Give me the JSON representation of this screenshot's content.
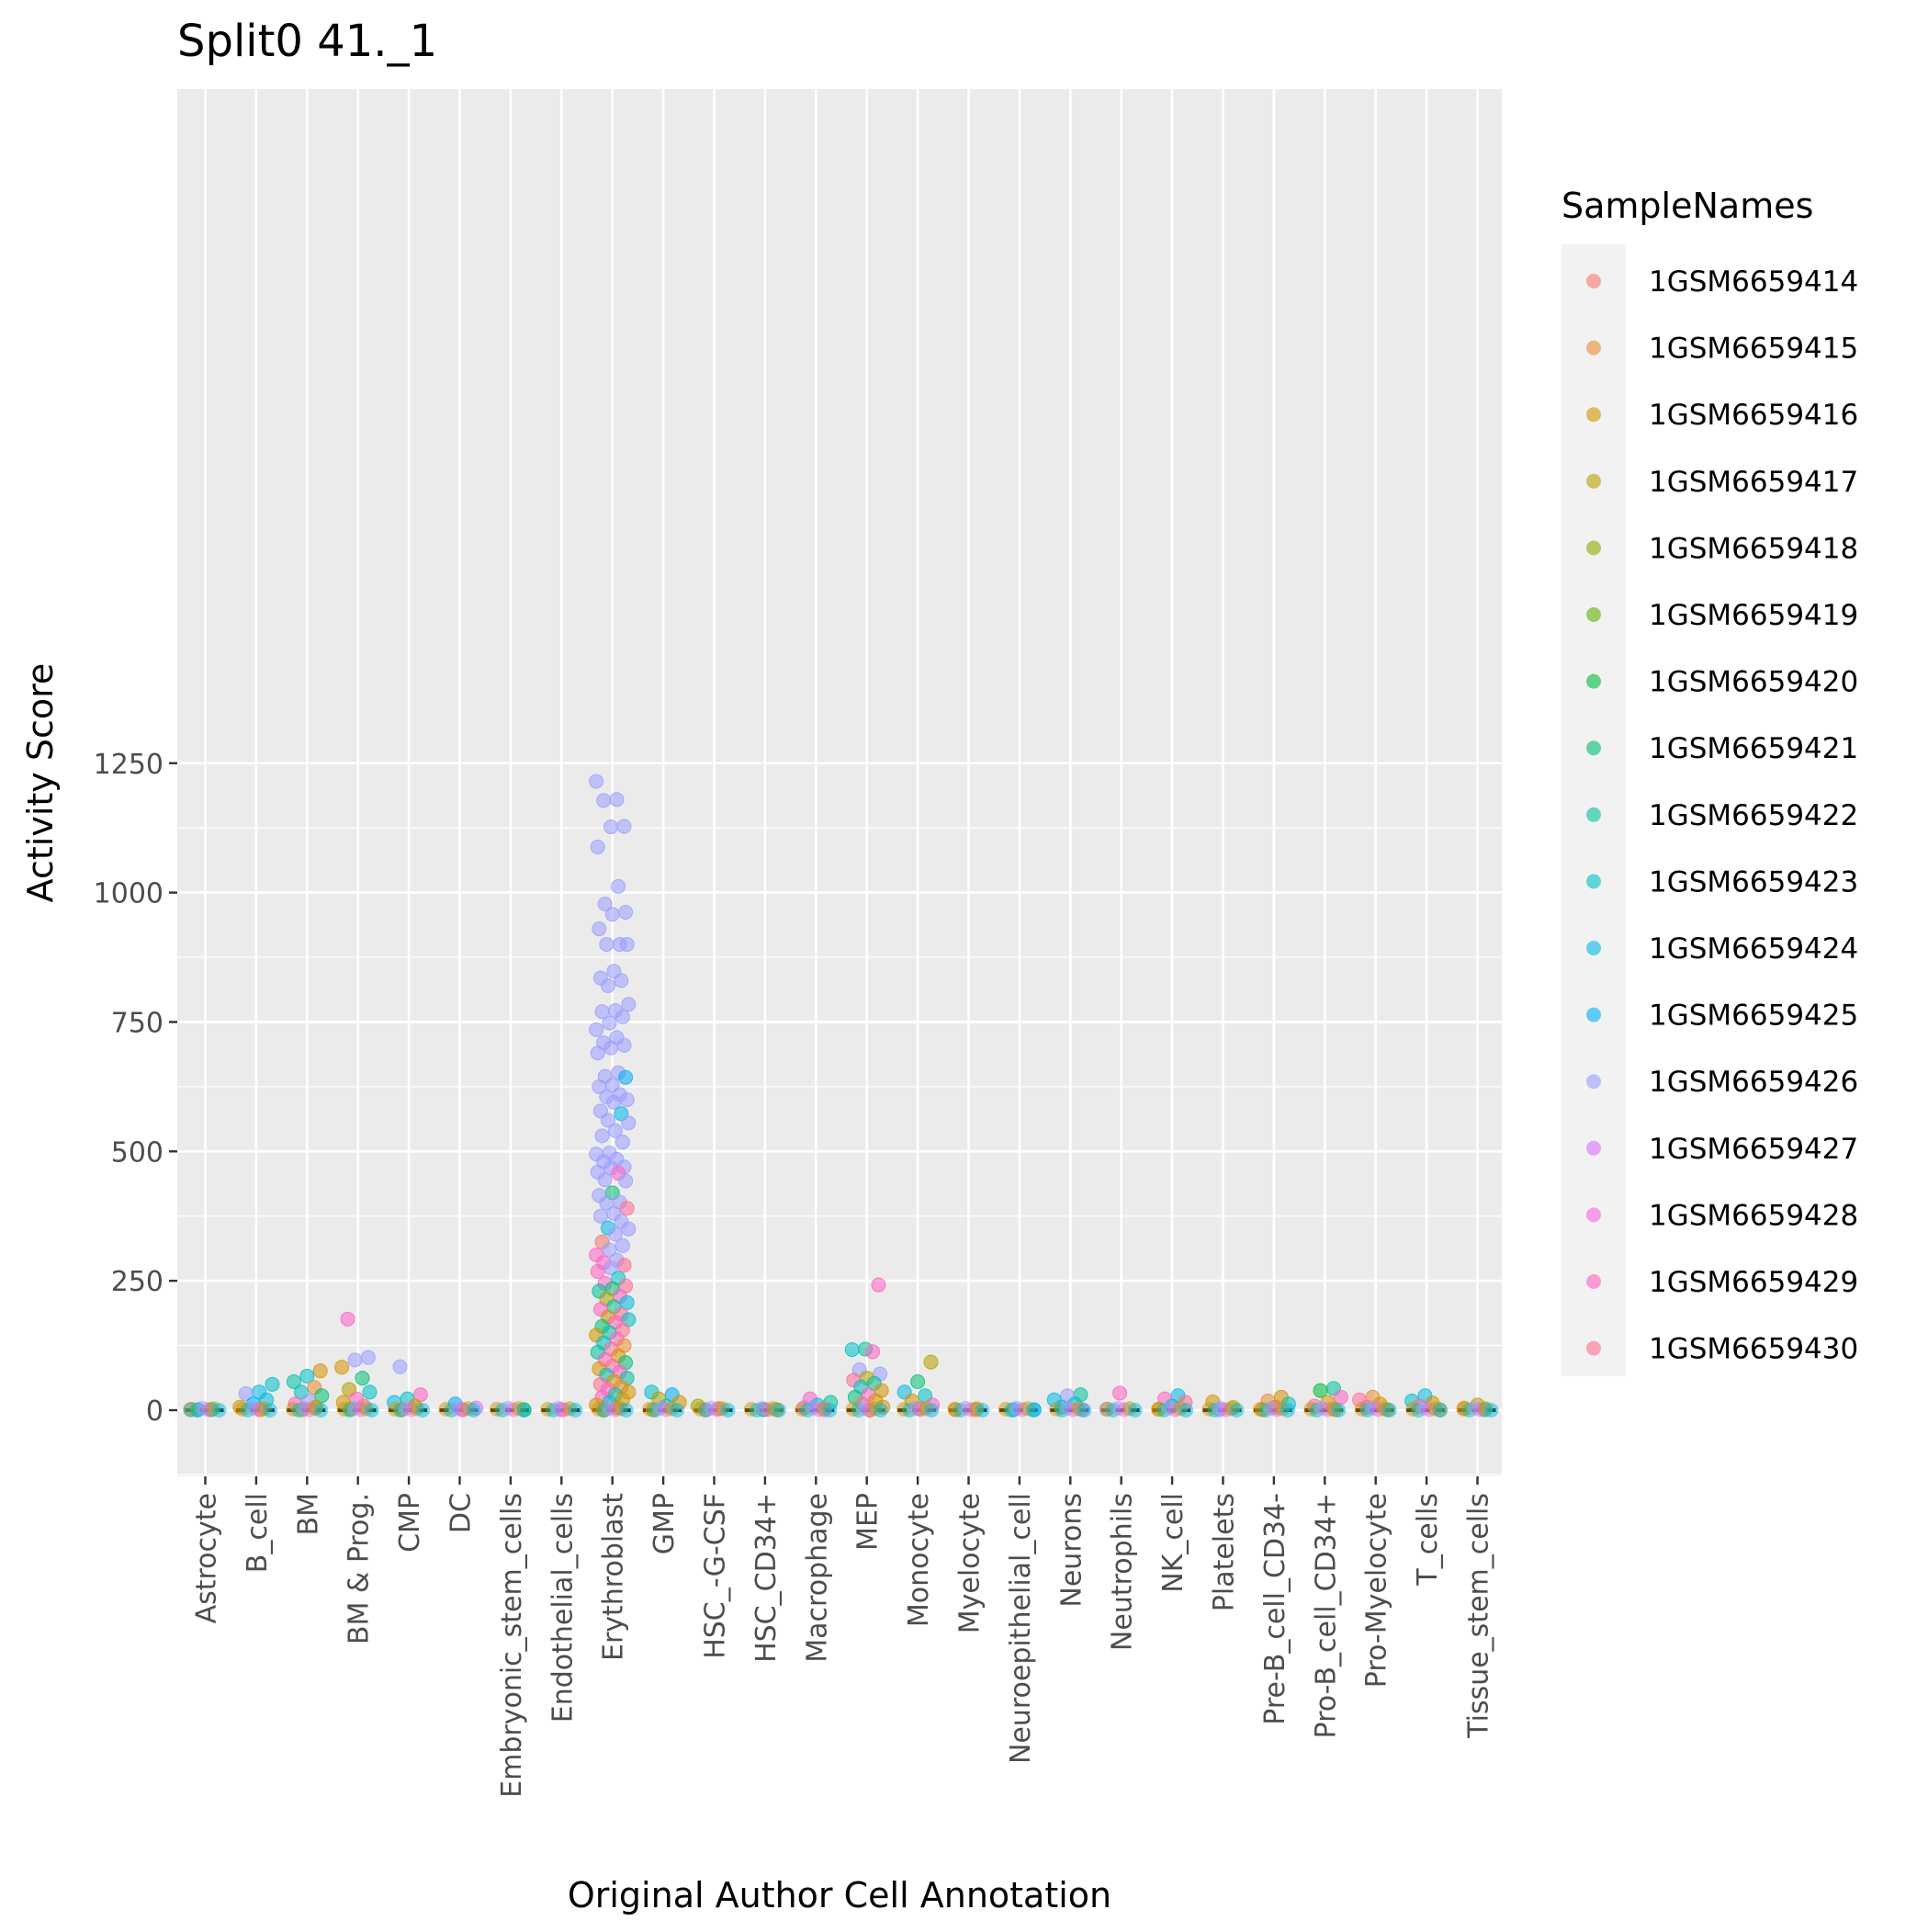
{
  "chart_data": {
    "type": "scatter",
    "title": "Split0 41._1",
    "xlabel": "Original Author Cell Annotation",
    "ylabel": "Activity Score",
    "ylim": [
      -62,
      1272
    ],
    "yticks": [
      0,
      250,
      500,
      750,
      1000,
      1250
    ],
    "grid": true,
    "legend_position": "right",
    "legend_title": "SampleNames",
    "categories": [
      "Astrocyte",
      "B_cell",
      "BM",
      "BM & Prog.",
      "CMP",
      "DC",
      "Embryonic_stem_cells",
      "Endothelial_cells",
      "Erythroblast",
      "GMP",
      "HSC_-G-CSF",
      "HSC_CD34+",
      "Macrophage",
      "MEP",
      "Monocyte",
      "Myelocyte",
      "Neuroepithelial_cell",
      "Neurons",
      "Neutrophils",
      "NK_cell",
      "Platelets",
      "Pre-B_cell_CD34-",
      "Pro-B_cell_CD34+",
      "Pro-Myelocyte",
      "T_cells",
      "Tissue_stem_cells"
    ],
    "series": [
      {
        "name": "1GSM6659414",
        "color": "#F8766D"
      },
      {
        "name": "1GSM6659415",
        "color": "#E98A33"
      },
      {
        "name": "1GSM6659416",
        "color": "#D39200"
      },
      {
        "name": "1GSM6659417",
        "color": "#B79F00"
      },
      {
        "name": "1GSM6659418",
        "color": "#93AA00"
      },
      {
        "name": "1GSM6659419",
        "color": "#5EB300"
      },
      {
        "name": "1GSM6659420",
        "color": "#00BA38"
      },
      {
        "name": "1GSM6659421",
        "color": "#00BF74"
      },
      {
        "name": "1GSM6659422",
        "color": "#00C19F"
      },
      {
        "name": "1GSM6659423",
        "color": "#00BFC4"
      },
      {
        "name": "1GSM6659424",
        "color": "#00B9E3"
      },
      {
        "name": "1GSM6659425",
        "color": "#00ADFA"
      },
      {
        "name": "1GSM6659426",
        "color": "#9A9CFF"
      },
      {
        "name": "1GSM6659427",
        "color": "#DB72FB"
      },
      {
        "name": "1GSM6659428",
        "color": "#F564E3"
      },
      {
        "name": "1GSM6659429",
        "color": "#FF61C3"
      },
      {
        "name": "1GSM6659430",
        "color": "#FF6C91"
      }
    ],
    "points": [
      [
        "Erythroblast",
        1215,
        12
      ],
      [
        "Erythroblast",
        1180,
        12
      ],
      [
        "Erythroblast",
        1178,
        12
      ],
      [
        "Erythroblast",
        1128,
        12
      ],
      [
        "Erythroblast",
        1127,
        12
      ],
      [
        "Erythroblast",
        1088,
        12
      ],
      [
        "Erythroblast",
        1012,
        12
      ],
      [
        "Erythroblast",
        978,
        12
      ],
      [
        "Erythroblast",
        962,
        12
      ],
      [
        "Erythroblast",
        958,
        12
      ],
      [
        "Erythroblast",
        930,
        12
      ],
      [
        "Erythroblast",
        900,
        12
      ],
      [
        "Erythroblast",
        900,
        12
      ],
      [
        "Erythroblast",
        900,
        12
      ],
      [
        "Erythroblast",
        848,
        12
      ],
      [
        "Erythroblast",
        835,
        12
      ],
      [
        "Erythroblast",
        830,
        12
      ],
      [
        "Erythroblast",
        820,
        12
      ],
      [
        "Erythroblast",
        784,
        12
      ],
      [
        "Erythroblast",
        772,
        12
      ],
      [
        "Erythroblast",
        770,
        12
      ],
      [
        "Erythroblast",
        760,
        12
      ],
      [
        "Erythroblast",
        748,
        12
      ],
      [
        "Erythroblast",
        735,
        12
      ],
      [
        "Erythroblast",
        720,
        12
      ],
      [
        "Erythroblast",
        710,
        12
      ],
      [
        "Erythroblast",
        705,
        12
      ],
      [
        "Erythroblast",
        700,
        12
      ],
      [
        "Erythroblast",
        690,
        12
      ],
      [
        "Erythroblast",
        652,
        12
      ],
      [
        "Erythroblast",
        645,
        12
      ],
      [
        "Erythroblast",
        643,
        11
      ],
      [
        "Erythroblast",
        628,
        12
      ],
      [
        "Erythroblast",
        625,
        12
      ],
      [
        "Erythroblast",
        610,
        12
      ],
      [
        "Erythroblast",
        605,
        12
      ],
      [
        "Erythroblast",
        600,
        12
      ],
      [
        "Erythroblast",
        595,
        12
      ],
      [
        "Erythroblast",
        578,
        12
      ],
      [
        "Erythroblast",
        573,
        10
      ],
      [
        "Erythroblast",
        560,
        12
      ],
      [
        "Erythroblast",
        555,
        12
      ],
      [
        "Erythroblast",
        540,
        12
      ],
      [
        "Erythroblast",
        530,
        12
      ],
      [
        "Erythroblast",
        518,
        12
      ],
      [
        "Erythroblast",
        497,
        12
      ],
      [
        "Erythroblast",
        495,
        12
      ],
      [
        "Erythroblast",
        485,
        12
      ],
      [
        "Erythroblast",
        480,
        12
      ],
      [
        "Erythroblast",
        470,
        12
      ],
      [
        "Erythroblast",
        468,
        12
      ],
      [
        "Erythroblast",
        460,
        12
      ],
      [
        "Erythroblast",
        458,
        15
      ],
      [
        "Erythroblast",
        445,
        12
      ],
      [
        "Erythroblast",
        443,
        12
      ],
      [
        "Erythroblast",
        420,
        7
      ],
      [
        "Erythroblast",
        415,
        12
      ],
      [
        "Erythroblast",
        402,
        12
      ],
      [
        "Erythroblast",
        400,
        12
      ],
      [
        "Erythroblast",
        390,
        16
      ],
      [
        "Erythroblast",
        380,
        12
      ],
      [
        "Erythroblast",
        375,
        12
      ],
      [
        "Erythroblast",
        365,
        12
      ],
      [
        "Erythroblast",
        352,
        10
      ],
      [
        "Erythroblast",
        350,
        12
      ],
      [
        "Erythroblast",
        340,
        12
      ],
      [
        "Erythroblast",
        325,
        0
      ],
      [
        "Erythroblast",
        318,
        12
      ],
      [
        "Erythroblast",
        310,
        12
      ],
      [
        "Erythroblast",
        300,
        15
      ],
      [
        "Erythroblast",
        290,
        12
      ],
      [
        "Erythroblast",
        285,
        15
      ],
      [
        "Erythroblast",
        280,
        16
      ],
      [
        "Erythroblast",
        275,
        12
      ],
      [
        "Erythroblast",
        268,
        15
      ],
      [
        "Erythroblast",
        255,
        9
      ],
      [
        "Erythroblast",
        245,
        15
      ],
      [
        "Erythroblast",
        240,
        16
      ],
      [
        "Erythroblast",
        235,
        7
      ],
      [
        "Erythroblast",
        230,
        8
      ],
      [
        "Erythroblast",
        220,
        15
      ],
      [
        "Erythroblast",
        215,
        3
      ],
      [
        "Erythroblast",
        208,
        10
      ],
      [
        "Erythroblast",
        200,
        8
      ],
      [
        "Erythroblast",
        195,
        15
      ],
      [
        "Erythroblast",
        185,
        16
      ],
      [
        "Erythroblast",
        180,
        2
      ],
      [
        "Erythroblast",
        175,
        9
      ],
      [
        "Erythroblast",
        170,
        15
      ],
      [
        "Erythroblast",
        162,
        7
      ],
      [
        "Erythroblast",
        155,
        16
      ],
      [
        "Erythroblast",
        150,
        8
      ],
      [
        "Erythroblast",
        145,
        2
      ],
      [
        "Erythroblast",
        138,
        15
      ],
      [
        "Erythroblast",
        130,
        9
      ],
      [
        "Erythroblast",
        125,
        1
      ],
      [
        "Erythroblast",
        118,
        16
      ],
      [
        "Erythroblast",
        112,
        8
      ],
      [
        "Erythroblast",
        105,
        2
      ],
      [
        "Erythroblast",
        98,
        15
      ],
      [
        "Erythroblast",
        92,
        7
      ],
      [
        "Erythroblast",
        85,
        16
      ],
      [
        "Erythroblast",
        80,
        2
      ],
      [
        "Erythroblast",
        74,
        15
      ],
      [
        "Erythroblast",
        68,
        9
      ],
      [
        "Erythroblast",
        62,
        8
      ],
      [
        "Erythroblast",
        56,
        2
      ],
      [
        "Erythroblast",
        50,
        16
      ],
      [
        "Erythroblast",
        45,
        1
      ],
      [
        "Erythroblast",
        40,
        15
      ],
      [
        "Erythroblast",
        35,
        2
      ],
      [
        "Erythroblast",
        30,
        8
      ],
      [
        "Erythroblast",
        25,
        15
      ],
      [
        "Erythroblast",
        20,
        2
      ],
      [
        "Erythroblast",
        15,
        9
      ],
      [
        "Erythroblast",
        10,
        2
      ],
      [
        "Erythroblast",
        5,
        2
      ],
      [
        "Erythroblast",
        0,
        2
      ],
      [
        "MEP",
        242,
        15
      ],
      [
        "MEP",
        118,
        8
      ],
      [
        "MEP",
        117,
        9
      ],
      [
        "MEP",
        113,
        15
      ],
      [
        "MEP",
        78,
        12
      ],
      [
        "MEP",
        70,
        12
      ],
      [
        "MEP",
        62,
        3
      ],
      [
        "MEP",
        58,
        16
      ],
      [
        "MEP",
        52,
        8
      ],
      [
        "MEP",
        45,
        9
      ],
      [
        "MEP",
        38,
        2
      ],
      [
        "MEP",
        30,
        15
      ],
      [
        "MEP",
        25,
        7
      ],
      [
        "MEP",
        18,
        2
      ],
      [
        "MEP",
        12,
        16
      ],
      [
        "MEP",
        6,
        2
      ],
      [
        "MEP",
        0,
        2
      ],
      [
        "BM & Prog.",
        176,
        15
      ],
      [
        "BM & Prog.",
        102,
        12
      ],
      [
        "BM & Prog.",
        97,
        12
      ],
      [
        "BM & Prog.",
        83,
        2
      ],
      [
        "BM & Prog.",
        62,
        7
      ],
      [
        "BM & Prog.",
        40,
        3
      ],
      [
        "BM & Prog.",
        35,
        9
      ],
      [
        "BM & Prog.",
        22,
        15
      ],
      [
        "BM & Prog.",
        15,
        2
      ],
      [
        "BM & Prog.",
        8,
        16
      ],
      [
        "BM & Prog.",
        2,
        2
      ],
      [
        "BM",
        76,
        2
      ],
      [
        "BM",
        66,
        9
      ],
      [
        "BM",
        55,
        8
      ],
      [
        "BM",
        44,
        1
      ],
      [
        "BM",
        35,
        9
      ],
      [
        "BM",
        28,
        7
      ],
      [
        "BM",
        18,
        12
      ],
      [
        "BM",
        12,
        15
      ],
      [
        "BM",
        6,
        2
      ],
      [
        "BM",
        1,
        2
      ],
      [
        "B_cell",
        50,
        9
      ],
      [
        "B_cell",
        35,
        10
      ],
      [
        "B_cell",
        32,
        12
      ],
      [
        "B_cell",
        20,
        10
      ],
      [
        "B_cell",
        12,
        11
      ],
      [
        "B_cell",
        6,
        2
      ],
      [
        "B_cell",
        1,
        2
      ],
      [
        "CMP",
        84,
        12
      ],
      [
        "CMP",
        30,
        15
      ],
      [
        "CMP",
        22,
        9
      ],
      [
        "CMP",
        15,
        10
      ],
      [
        "CMP",
        8,
        2
      ],
      [
        "CMP",
        1,
        2
      ],
      [
        "Monocyte",
        93,
        3
      ],
      [
        "Monocyte",
        55,
        7
      ],
      [
        "Monocyte",
        35,
        10
      ],
      [
        "Monocyte",
        28,
        9
      ],
      [
        "Monocyte",
        18,
        2
      ],
      [
        "Monocyte",
        10,
        15
      ],
      [
        "Monocyte",
        3,
        2
      ],
      [
        "GMP",
        35,
        9
      ],
      [
        "GMP",
        30,
        11
      ],
      [
        "GMP",
        22,
        3
      ],
      [
        "GMP",
        15,
        2
      ],
      [
        "GMP",
        8,
        9
      ],
      [
        "GMP",
        1,
        2
      ],
      [
        "Neurons",
        30,
        8
      ],
      [
        "Neurons",
        28,
        12
      ],
      [
        "Neurons",
        20,
        10
      ],
      [
        "Neurons",
        12,
        9
      ],
      [
        "Neurons",
        6,
        10
      ],
      [
        "Neurons",
        1,
        13
      ],
      [
        "Neutrophils",
        33,
        15
      ],
      [
        "Neutrophils",
        2,
        12
      ],
      [
        "NK_cell",
        28,
        10
      ],
      [
        "NK_cell",
        22,
        15
      ],
      [
        "NK_cell",
        15,
        16
      ],
      [
        "NK_cell",
        8,
        9
      ],
      [
        "NK_cell",
        2,
        2
      ],
      [
        "Pre-B_cell_CD34-",
        25,
        2
      ],
      [
        "Pre-B_cell_CD34-",
        18,
        1
      ],
      [
        "Pre-B_cell_CD34-",
        12,
        9
      ],
      [
        "Pre-B_cell_CD34-",
        6,
        2
      ],
      [
        "Pre-B_cell_CD34-",
        1,
        2
      ],
      [
        "Pro-B_cell_CD34+",
        42,
        8
      ],
      [
        "Pro-B_cell_CD34+",
        38,
        6
      ],
      [
        "Pro-B_cell_CD34+",
        25,
        15
      ],
      [
        "Pro-B_cell_CD34+",
        15,
        2
      ],
      [
        "Pro-B_cell_CD34+",
        8,
        16
      ],
      [
        "Pro-B_cell_CD34+",
        1,
        2
      ],
      [
        "Pro-Myelocyte",
        25,
        1
      ],
      [
        "Pro-Myelocyte",
        20,
        16
      ],
      [
        "Pro-Myelocyte",
        12,
        2
      ],
      [
        "Pro-Myelocyte",
        6,
        15
      ],
      [
        "Pro-Myelocyte",
        1,
        2
      ],
      [
        "T_cells",
        28,
        10
      ],
      [
        "T_cells",
        18,
        9
      ],
      [
        "T_cells",
        14,
        2
      ],
      [
        "T_cells",
        8,
        16
      ],
      [
        "T_cells",
        1,
        2
      ],
      [
        "Tissue_stem_cells",
        10,
        3
      ],
      [
        "Tissue_stem_cells",
        4,
        2
      ],
      [
        "Tissue_stem_cells",
        1,
        8
      ],
      [
        "Macrophage",
        22,
        15
      ],
      [
        "Macrophage",
        15,
        8
      ],
      [
        "Macrophage",
        10,
        10
      ],
      [
        "Macrophage",
        5,
        13
      ],
      [
        "Macrophage",
        1,
        13
      ],
      [
        "DC",
        12,
        11
      ],
      [
        "DC",
        4,
        13
      ],
      [
        "DC",
        1,
        15
      ],
      [
        "Platelets",
        16,
        2
      ],
      [
        "Platelets",
        5,
        3
      ],
      [
        "Platelets",
        1,
        12
      ],
      [
        "HSC_-G-CSF",
        8,
        4
      ],
      [
        "HSC_-G-CSF",
        3,
        1
      ],
      [
        "HSC_-G-CSF",
        1,
        16
      ],
      [
        "HSC_CD34+",
        1,
        3
      ],
      [
        "HSC_CD34+",
        1,
        6
      ],
      [
        "Astrocyte",
        1,
        10
      ],
      [
        "Astrocyte",
        1,
        7
      ],
      [
        "Astrocyte",
        1,
        9
      ],
      [
        "Embryonic_stem_cells",
        1,
        6
      ],
      [
        "Endothelial_cells",
        1,
        15
      ],
      [
        "Myelocyte",
        1,
        1
      ],
      [
        "Myelocyte",
        1,
        2
      ],
      [
        "Neuroepithelial_cell",
        1,
        10
      ],
      [
        "Neuroepithelial_cell",
        1,
        11
      ]
    ]
  }
}
